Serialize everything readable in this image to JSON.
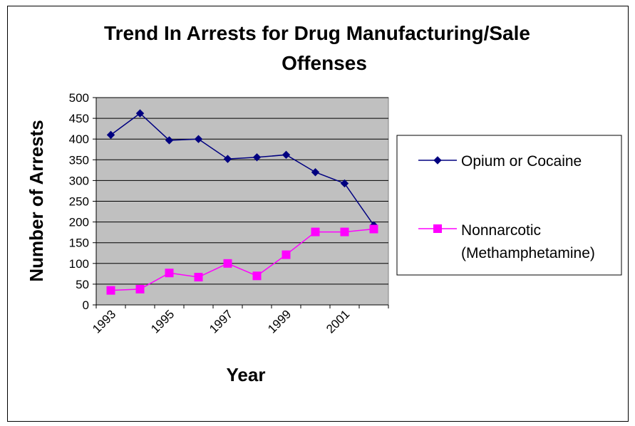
{
  "chart_data": {
    "type": "line",
    "title_line1": "Trend In Arrests for Drug Manufacturing/Sale",
    "title_line2": "Offenses",
    "xlabel": "Year",
    "ylabel": "Number of Arrests",
    "x": [
      1993,
      1994,
      1995,
      1996,
      1997,
      1998,
      1999,
      2000,
      2001,
      2002
    ],
    "x_tick_labels": [
      "1993",
      "1995",
      "1997",
      "1999",
      "2001"
    ],
    "ylim": [
      0,
      500
    ],
    "y_ticks": [
      0,
      50,
      100,
      150,
      200,
      250,
      300,
      350,
      400,
      450,
      500
    ],
    "grid": true,
    "plot_background": "#c0c0c0",
    "legend_position": "right",
    "series": [
      {
        "name": "Opium or Cocaine",
        "color": "#000080",
        "marker": "diamond",
        "values": [
          410,
          462,
          397,
          400,
          352,
          356,
          362,
          320,
          293,
          192
        ]
      },
      {
        "name_line1": "Nonnarcotic",
        "name_line2": "(Methamphetamine)",
        "color": "#ff00ff",
        "marker": "square",
        "values": [
          35,
          38,
          77,
          67,
          100,
          70,
          121,
          176,
          176,
          183
        ]
      }
    ]
  }
}
